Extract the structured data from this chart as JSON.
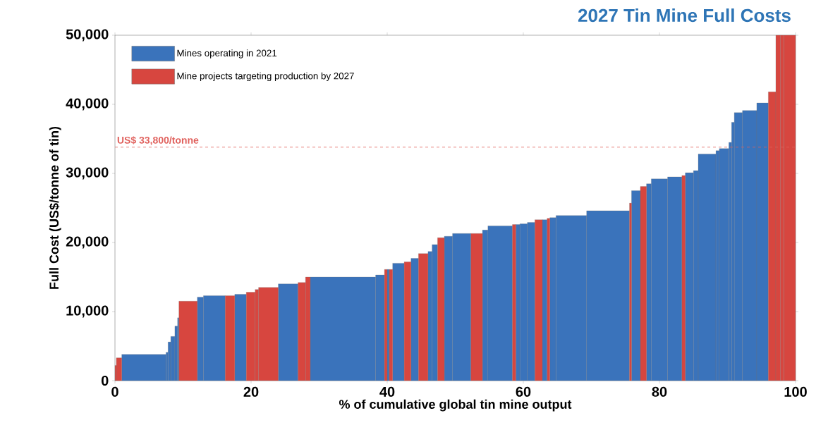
{
  "chart_data": {
    "type": "histogram",
    "title": "2027 Tin Mine Full Costs",
    "xlabel": "% of cumulative global tin mine output",
    "ylabel": "Full Cost (US$/tonne of tin)",
    "bins": [
      0,
      0.2,
      1.0,
      7.5,
      7.8,
      8.2,
      8.8,
      9.2,
      9.4,
      12.1,
      13.0,
      16.2,
      17.6,
      19.3,
      20.6,
      21.1,
      24.0,
      26.9,
      28.0,
      28.7,
      38.3,
      39.6,
      40.0,
      40.3,
      40.8,
      42.5,
      43.5,
      44.6,
      46.0,
      46.6,
      47.4,
      48.4,
      49.6,
      52.3,
      54.0,
      54.8,
      58.4,
      58.9,
      59.5,
      60.6,
      61.7,
      62.8,
      63.5,
      63.9,
      64.8,
      69.3,
      75.6,
      75.9,
      77.2,
      78.1,
      78.8,
      81.2,
      83.3,
      83.8,
      85.0,
      85.7,
      88.3,
      88.8,
      90.2,
      90.6,
      91.0,
      92.2,
      94.3,
      96.0,
      97.1,
      97.8,
      98.3,
      100
    ],
    "series": [
      {
        "name": "Mines operating in 2021",
        "color": "#3a73bb",
        "values": [
          null,
          null,
          3800,
          4100,
          5600,
          6400,
          7900,
          9100,
          null,
          12100,
          12300,
          null,
          12500,
          null,
          null,
          null,
          14000,
          null,
          null,
          15000,
          15300,
          null,
          16100,
          null,
          17000,
          null,
          17700,
          null,
          18700,
          19700,
          null,
          20900,
          21300,
          null,
          21800,
          22400,
          null,
          22600,
          22700,
          22900,
          null,
          23300,
          null,
          23600,
          23900,
          24600,
          null,
          27500,
          null,
          28500,
          29200,
          29500,
          null,
          30100,
          30400,
          32800,
          33300,
          33600,
          34500,
          37400,
          38800,
          39100,
          40200,
          null,
          null,
          null,
          null
        ]
      },
      {
        "name": "Mine projects targeting production by 2027",
        "color": "#d7463f",
        "values": [
          2200,
          3300,
          null,
          null,
          null,
          null,
          null,
          null,
          11500,
          null,
          null,
          12300,
          null,
          12800,
          13200,
          13500,
          null,
          14200,
          15000,
          null,
          null,
          16100,
          null,
          16100,
          null,
          17200,
          null,
          18400,
          null,
          null,
          20700,
          null,
          null,
          21300,
          null,
          null,
          22600,
          null,
          null,
          null,
          23300,
          null,
          23500,
          null,
          null,
          null,
          25700,
          null,
          28100,
          null,
          null,
          null,
          29700,
          null,
          null,
          null,
          null,
          null,
          null,
          null,
          null,
          null,
          null,
          41800,
          50000,
          50000,
          50000
        ]
      }
    ],
    "xlim": [
      0,
      100
    ],
    "ylim": [
      0,
      50000
    ],
    "xticks": [
      0,
      20,
      40,
      60,
      80,
      100
    ],
    "yticks": [
      {
        "value": 0,
        "label": "0"
      },
      {
        "value": 10000,
        "label": "10,000"
      },
      {
        "value": 20000,
        "label": "20,000"
      },
      {
        "value": 30000,
        "label": "30,000"
      },
      {
        "value": 40000,
        "label": "40,000"
      },
      {
        "value": 50000,
        "label": "50,000"
      }
    ],
    "ref_lines": [
      {
        "axis": "y",
        "value": 33800,
        "label": "US$ 33,800/tonne",
        "color": "#e0605c",
        "line_style": "dashed"
      }
    ],
    "legend": "top left"
  }
}
